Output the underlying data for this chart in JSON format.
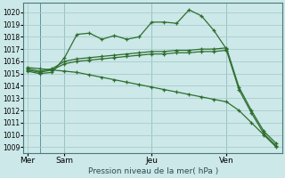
{
  "background_color": "#cce8e8",
  "grid_color": "#aacccc",
  "line_color": "#2d6e2d",
  "vline_color": "#559999",
  "xlabel": "Pression niveau de la mer( hPa )",
  "ylim": [
    1008.5,
    1020.8
  ],
  "yticks": [
    1009,
    1010,
    1011,
    1012,
    1013,
    1014,
    1015,
    1016,
    1017,
    1018,
    1019,
    1020
  ],
  "xtick_labels": [
    "Mer",
    "Sam",
    "Jeu",
    "Ven"
  ],
  "xtick_positions": [
    0,
    3,
    10,
    16
  ],
  "vline_positions": [
    1,
    3,
    10,
    16
  ],
  "n_points": 21,
  "series": [
    {
      "x": [
        0,
        1,
        2,
        3,
        4,
        5,
        6,
        7,
        8,
        9,
        10,
        11,
        12,
        13,
        14,
        15,
        16
      ],
      "y": [
        1015.2,
        1015.0,
        1015.1,
        1016.3,
        1018.2,
        1018.3,
        1017.8,
        1018.1,
        1017.8,
        1018.0,
        1019.2,
        1019.2,
        1019.1,
        1020.2,
        1019.7,
        1018.5,
        1017.0
      ]
    },
    {
      "x": [
        0,
        1,
        2,
        3,
        4,
        5,
        6,
        7,
        8,
        9,
        10,
        11,
        12,
        13,
        14,
        15,
        16,
        17,
        18,
        19,
        20
      ],
      "y": [
        1015.3,
        1015.1,
        1015.3,
        1015.8,
        1016.0,
        1016.1,
        1016.2,
        1016.3,
        1016.4,
        1016.5,
        1016.6,
        1016.6,
        1016.7,
        1016.7,
        1016.8,
        1016.8,
        1016.9,
        1013.7,
        1011.8,
        1010.1,
        1009.1
      ]
    },
    {
      "x": [
        0,
        1,
        2,
        3,
        4,
        5,
        6,
        7,
        8,
        9,
        10,
        11,
        12,
        13,
        14,
        15,
        16,
        17,
        18,
        19,
        20
      ],
      "y": [
        1015.4,
        1015.2,
        1015.4,
        1016.0,
        1016.2,
        1016.3,
        1016.4,
        1016.5,
        1016.6,
        1016.7,
        1016.8,
        1016.8,
        1016.9,
        1016.9,
        1017.0,
        1017.0,
        1017.1,
        1013.9,
        1012.0,
        1010.3,
        1009.3
      ]
    },
    {
      "x": [
        0,
        1,
        2,
        3,
        4,
        5,
        6,
        7,
        8,
        9,
        10,
        11,
        12,
        13,
        14,
        15,
        16,
        17,
        18,
        19,
        20
      ],
      "y": [
        1015.5,
        1015.4,
        1015.3,
        1015.2,
        1015.1,
        1014.9,
        1014.7,
        1014.5,
        1014.3,
        1014.1,
        1013.9,
        1013.7,
        1013.5,
        1013.3,
        1013.1,
        1012.9,
        1012.7,
        1012.0,
        1011.0,
        1010.0,
        1009.0
      ]
    }
  ]
}
